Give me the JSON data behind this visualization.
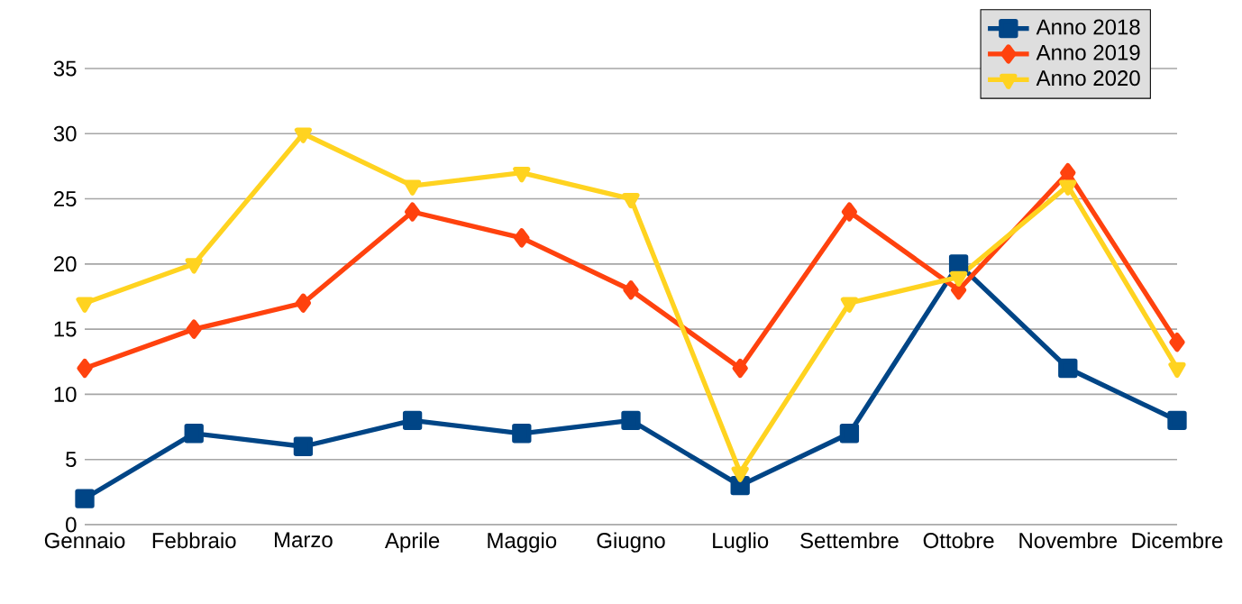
{
  "chart_data": {
    "type": "line",
    "categories": [
      "Gennaio",
      "Febbraio",
      "Marzo",
      "Aprile",
      "Maggio",
      "Giugno",
      "Luglio",
      "Settembre",
      "Ottobre",
      "Novembre",
      "Dicembre"
    ],
    "series": [
      {
        "name": "Anno 2018",
        "color": "#004586",
        "marker": "square",
        "values": [
          2,
          7,
          6,
          8,
          7,
          8,
          3,
          7,
          20,
          12,
          8
        ]
      },
      {
        "name": "Anno 2019",
        "color": "#ff420e",
        "marker": "diamond",
        "values": [
          12,
          15,
          17,
          24,
          22,
          18,
          12,
          24,
          18,
          27,
          14
        ]
      },
      {
        "name": "Anno 2020",
        "color": "#ffd320",
        "marker": "triangle",
        "values": [
          17,
          20,
          30,
          26,
          27,
          25,
          4,
          17,
          19,
          26,
          12
        ]
      }
    ],
    "ylim": [
      0,
      35
    ],
    "yticks": [
      0,
      5,
      10,
      15,
      20,
      25,
      30,
      35
    ],
    "grid": "y",
    "legend": "top right",
    "line_style": "solid"
  }
}
